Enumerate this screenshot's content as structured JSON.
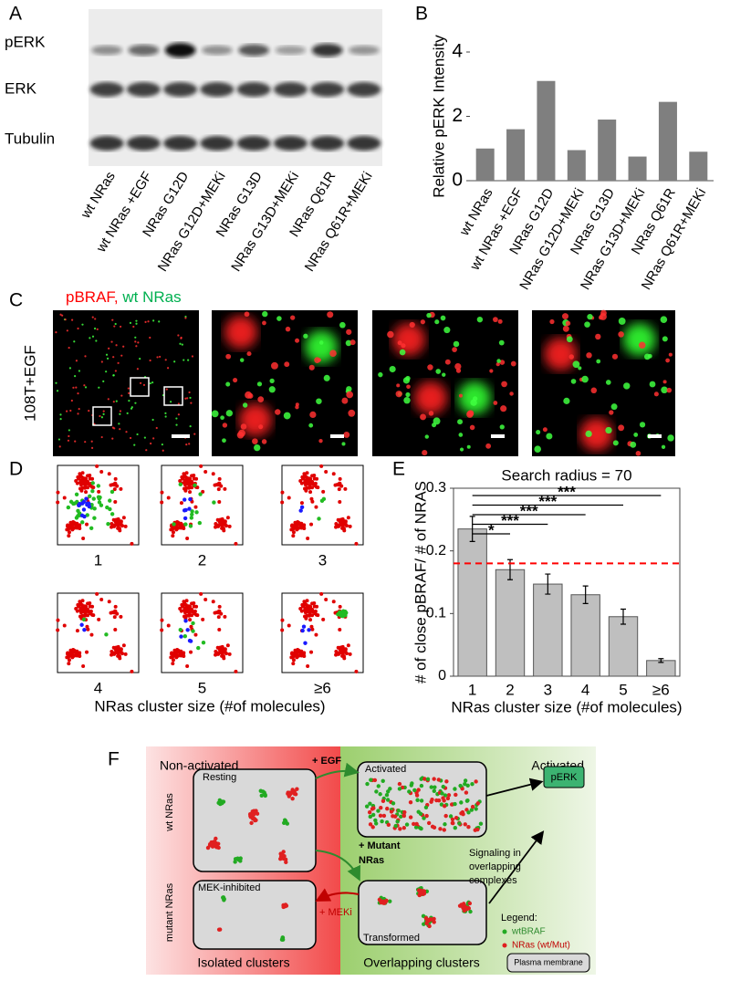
{
  "panels": [
    "A",
    "B",
    "C",
    "D",
    "E",
    "F"
  ],
  "blot": {
    "rows": [
      "pERK",
      "ERK",
      "Tubulin"
    ]
  },
  "microscopy": {
    "stain_1": "pBRAF,",
    "stain_2": "wt NRas",
    "condition": "108T+EGF"
  },
  "chart_data": [
    {
      "type": "bar",
      "y_label": "Relative pERK Intensity",
      "categories": [
        "wt NRas",
        "wt NRas +EGF",
        "NRas  G12D",
        "NRas  G12D+MEKi",
        "NRas  G13D",
        "NRas  G13D+MEKi",
        "NRas  Q61R",
        "NRas  Q61R+MEKi"
      ],
      "values": [
        1.0,
        1.6,
        3.1,
        0.95,
        1.9,
        0.75,
        2.45,
        0.9
      ],
      "color": "#7f7f7f",
      "ylim": [
        0,
        4
      ],
      "yticks": [
        0,
        2,
        4
      ]
    },
    {
      "type": "bar",
      "title": "Search radius = 70",
      "y_label": "# of close pBRAF/ # of NRAS",
      "x_label": "NRas cluster size (#of molecules)",
      "categories": [
        "1",
        "2",
        "3",
        "4",
        "5",
        "≥6"
      ],
      "values": [
        0.235,
        0.17,
        0.147,
        0.13,
        0.095,
        0.025
      ],
      "errors": [
        0.02,
        0.016,
        0.016,
        0.014,
        0.012,
        0.003
      ],
      "color": "#bfbfbf",
      "ylim": [
        0,
        0.3
      ],
      "yticks": [
        0,
        0.1,
        0.2,
        0.3
      ],
      "reference_line": {
        "value": 0.18,
        "color": "#ff0000",
        "style": "dashed"
      },
      "comparisons": [
        {
          "groups": [
            "1",
            "2"
          ],
          "label": "*"
        },
        {
          "groups": [
            "1",
            "3"
          ],
          "label": "***"
        },
        {
          "groups": [
            "1",
            "4"
          ],
          "label": "***"
        },
        {
          "groups": [
            "1",
            "5"
          ],
          "label": "***"
        },
        {
          "groups": [
            "1",
            "≥6"
          ],
          "label": "***"
        }
      ]
    }
  ],
  "model": {
    "left_title": "Non-activated",
    "right_title": "Activated",
    "row_1": "wt NRas",
    "row_2": "mutant NRas",
    "box_resting": "Resting",
    "box_activated": "Activated",
    "box_mek": "MEK-inhibited",
    "box_transformed": "Transformed",
    "arrow_egf": "+ EGF",
    "arrow_mutant": [
      "+ Mutant",
      "NRas"
    ],
    "arrow_meki": "+ MEKi",
    "signaling": [
      "Signaling  in",
      "overlapping",
      "complexes"
    ],
    "output": "pERK",
    "legend_title": "Legend:",
    "legend_items": [
      "wtBRAF",
      "NRas (wt/Mut)"
    ],
    "left_caption": "Isolated clusters",
    "right_caption": "Overlapping clusters",
    "membrane": "Plasma membrane"
  }
}
